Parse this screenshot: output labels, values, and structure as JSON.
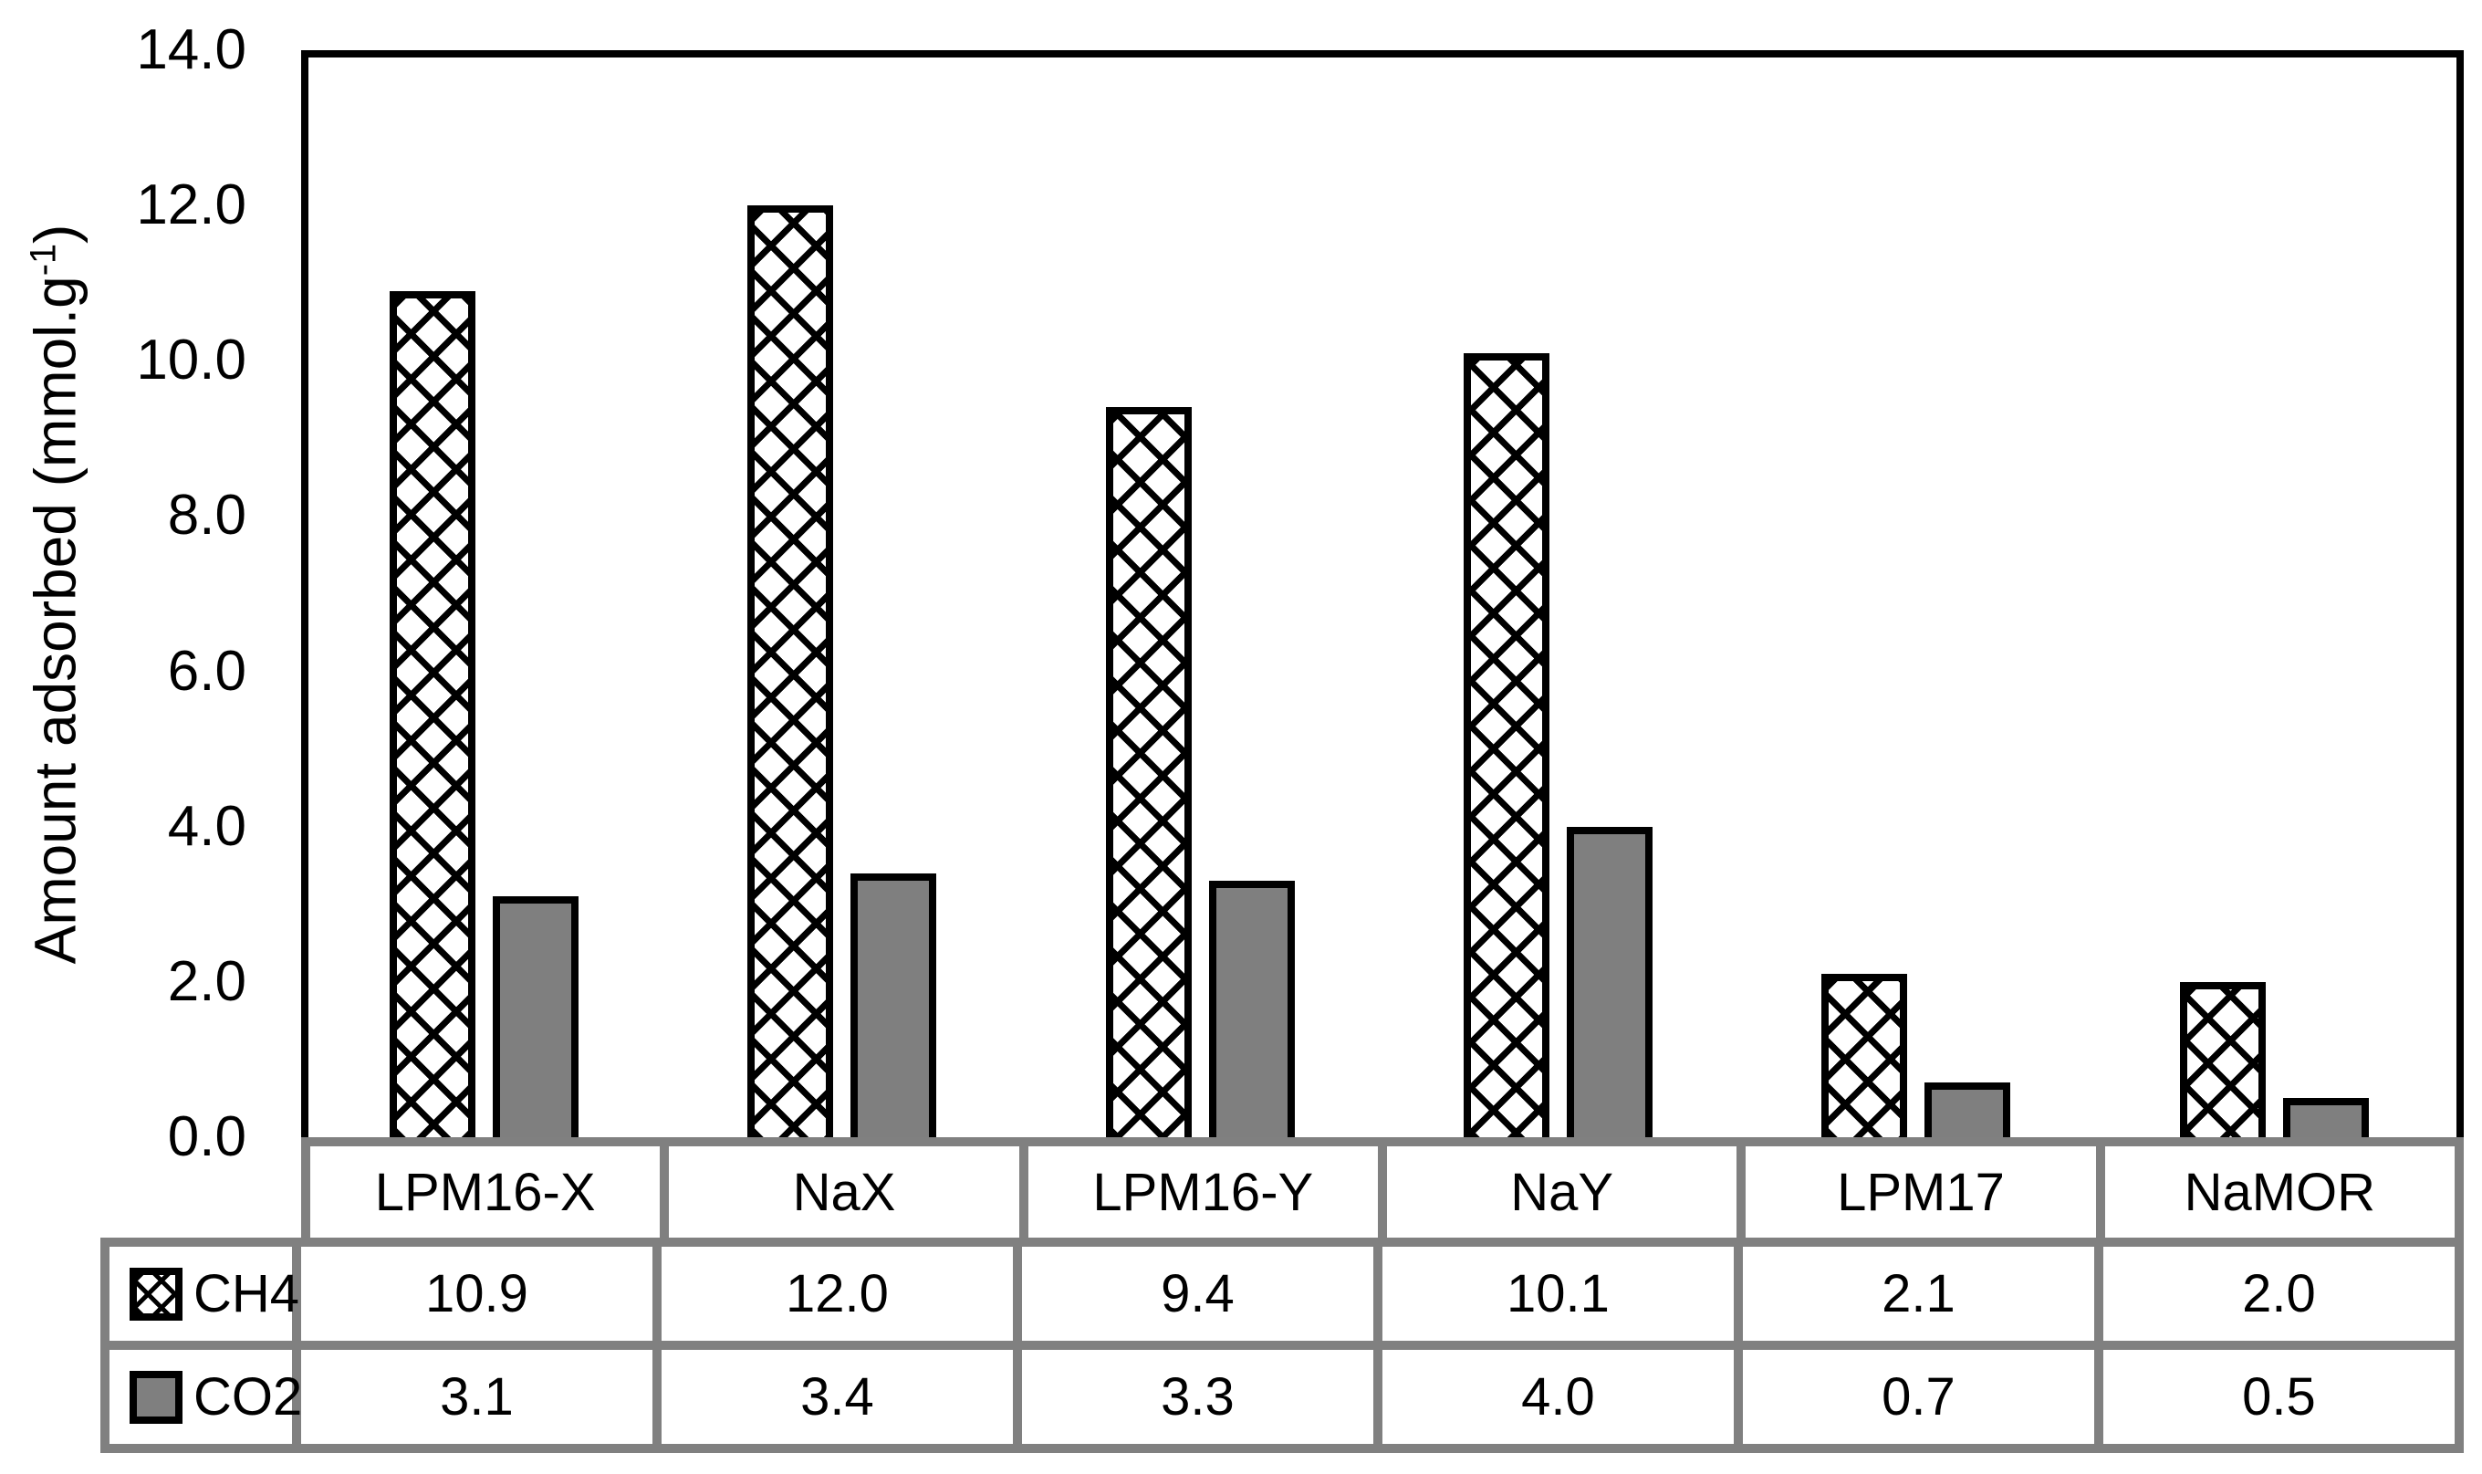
{
  "chart_data": {
    "type": "bar",
    "title": "",
    "ylabel_prefix": "Amount adsorbed (mmol.g",
    "ylabel_sup": "-1",
    "ylabel_suffix": ")",
    "categories": [
      "LPM16-X",
      "NaX",
      "LPM16-Y",
      "NaY",
      "LPM17",
      "NaMOR"
    ],
    "series": [
      {
        "name": "CH4",
        "pattern": "black-crosshatch-on-white",
        "values": [
          10.9,
          12.0,
          9.4,
          10.1,
          2.1,
          2.0
        ]
      },
      {
        "name": "CO2",
        "pattern": "solid-gray",
        "values": [
          3.1,
          3.4,
          3.3,
          4.0,
          0.7,
          0.5
        ]
      }
    ],
    "ylim": [
      0,
      14
    ],
    "ytick_step": 2,
    "ytick_labels": [
      "0.0",
      "2.0",
      "4.0",
      "6.0",
      "8.0",
      "10.0",
      "12.0",
      "14.0"
    ],
    "grid": false,
    "legend_position": "table-left",
    "colors": {
      "co2_fill": "#7f7f7f",
      "bar_border": "#000000",
      "table_line": "#808080",
      "plot_border": "#000000"
    }
  }
}
